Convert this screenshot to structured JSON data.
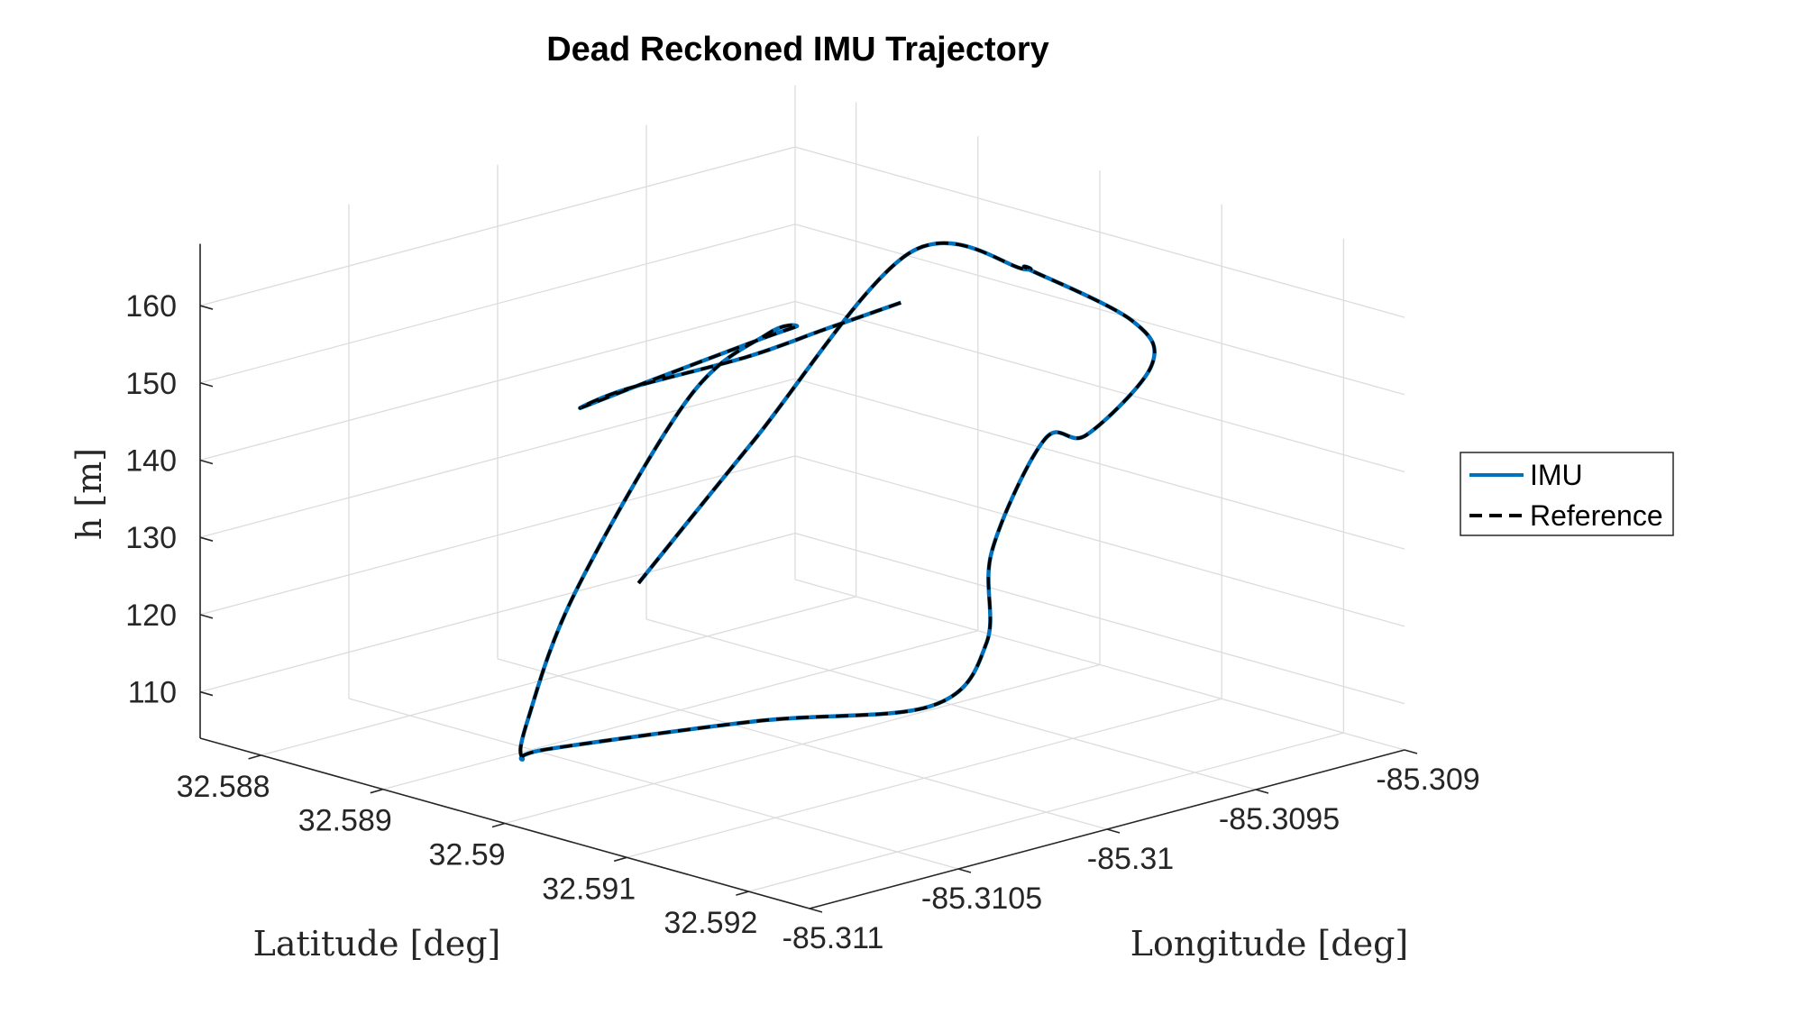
{
  "chart_data": {
    "type": "line",
    "title": "Dead Reckoned IMU Trajectory",
    "xlabel": "Longitude [deg]",
    "ylabel": "Latitude [deg]",
    "zlabel": "h [m]",
    "x_ticks": [
      "-85.311",
      "-85.3105",
      "-85.31",
      "-85.3095",
      "-85.309"
    ],
    "y_ticks": [
      "32.588",
      "32.589",
      "32.59",
      "32.591",
      "32.592"
    ],
    "z_ticks": [
      "110",
      "120",
      "130",
      "140",
      "150",
      "160"
    ],
    "xlim": [
      -85.311,
      -85.309
    ],
    "ylim": [
      32.5875,
      32.5925
    ],
    "zlim": [
      104,
      168
    ],
    "grid": true,
    "legend_position": "right",
    "series": [
      {
        "name": "IMU",
        "color": "#0072BD",
        "style": "solid",
        "points": [
          [
            -85.3101,
            32.5889,
            121
          ],
          [
            -85.3098,
            32.5891,
            137
          ],
          [
            -85.3096,
            32.5899,
            163
          ],
          [
            -85.3095,
            32.5906,
            163
          ],
          [
            -85.3094,
            32.5904,
            161
          ],
          [
            -85.3093,
            32.591,
            156
          ],
          [
            -85.3094,
            32.5914,
            153
          ],
          [
            -85.3097,
            32.5916,
            148
          ],
          [
            -85.3098,
            32.5915,
            148
          ],
          [
            -85.3101,
            32.5918,
            138
          ],
          [
            -85.3102,
            32.592,
            128
          ],
          [
            -85.3103,
            32.5918,
            120
          ],
          [
            -85.3106,
            32.5911,
            118
          ],
          [
            -85.3109,
            32.5901,
            113
          ],
          [
            -85.3109,
            32.5899,
            111
          ],
          [
            -85.3108,
            32.5897,
            114
          ],
          [
            -85.3106,
            32.5896,
            128
          ],
          [
            -85.3103,
            32.5898,
            151
          ],
          [
            -85.3102,
            32.5902,
            160
          ],
          [
            -85.3101,
            32.5902,
            160
          ],
          [
            -85.3101,
            32.5899,
            157
          ],
          [
            -85.3103,
            32.5895,
            152
          ],
          [
            -85.3105,
            32.5894,
            150
          ],
          [
            -85.3103,
            32.5893,
            150
          ],
          [
            -85.3099,
            32.5893,
            150
          ],
          [
            -85.3096,
            32.5892,
            150
          ],
          [
            -85.3093,
            32.5891,
            150
          ]
        ]
      },
      {
        "name": "Reference",
        "color": "#000000",
        "style": "dashed",
        "points": [
          [
            -85.3101,
            32.5889,
            121
          ],
          [
            -85.3098,
            32.5891,
            137
          ],
          [
            -85.3096,
            32.5899,
            163
          ],
          [
            -85.3095,
            32.5906,
            163
          ],
          [
            -85.3094,
            32.5904,
            161
          ],
          [
            -85.3093,
            32.591,
            156
          ],
          [
            -85.3094,
            32.5914,
            153
          ],
          [
            -85.3097,
            32.5916,
            148
          ],
          [
            -85.3098,
            32.5915,
            148
          ],
          [
            -85.3101,
            32.5918,
            138
          ],
          [
            -85.3102,
            32.592,
            128
          ],
          [
            -85.3103,
            32.5918,
            120
          ],
          [
            -85.3106,
            32.5911,
            118
          ],
          [
            -85.3109,
            32.5901,
            113
          ],
          [
            -85.3109,
            32.5899,
            111
          ],
          [
            -85.3108,
            32.5897,
            114
          ],
          [
            -85.3106,
            32.5896,
            128
          ],
          [
            -85.3103,
            32.5898,
            151
          ],
          [
            -85.3102,
            32.5902,
            160
          ],
          [
            -85.3101,
            32.5902,
            160
          ],
          [
            -85.3101,
            32.5899,
            157
          ],
          [
            -85.3103,
            32.5895,
            152
          ],
          [
            -85.3105,
            32.5894,
            150
          ],
          [
            -85.3103,
            32.5893,
            150
          ],
          [
            -85.3099,
            32.5893,
            150
          ],
          [
            -85.3096,
            32.5892,
            150
          ],
          [
            -85.3093,
            32.5891,
            150
          ]
        ]
      }
    ]
  }
}
